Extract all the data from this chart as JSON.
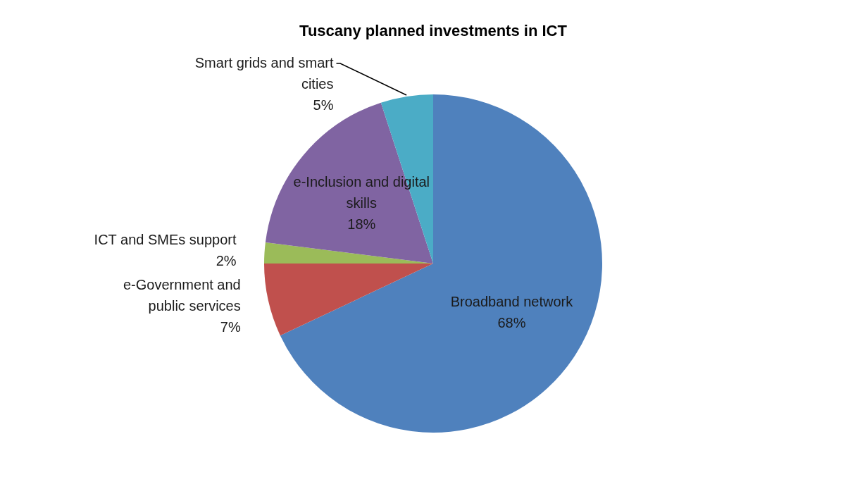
{
  "chart_data": {
    "type": "pie",
    "title": "Tuscany planned investments in ICT",
    "categories": [
      "Broadband network",
      "e-Government and public services",
      "ICT and SMEs support",
      "e-Inclusion and digital skills",
      "Smart grids and smart cities"
    ],
    "values": [
      68,
      7,
      2,
      18,
      5
    ],
    "colors": [
      "#4f81bd",
      "#c0504d",
      "#9bbb59",
      "#8064a2",
      "#4bacc6"
    ],
    "value_labels": [
      "68%",
      "7%",
      "2%",
      "18%",
      "5%"
    ],
    "legend": false
  }
}
